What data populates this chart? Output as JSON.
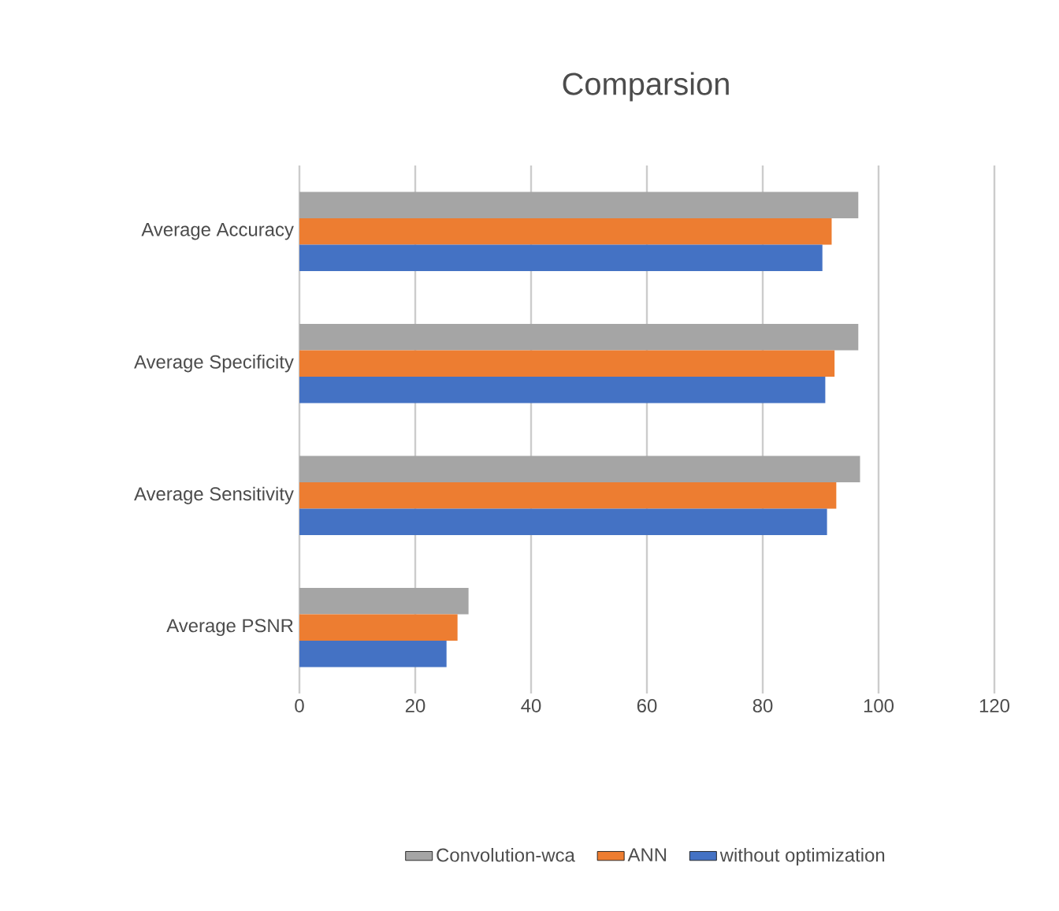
{
  "chart_data": {
    "type": "bar",
    "orientation": "horizontal",
    "title": "Comparsion",
    "categories": [
      "Average Accuracy",
      "Average Specificity",
      "Average Sensitivity",
      "Average PSNR"
    ],
    "series": [
      {
        "name": "Convolution-wca",
        "color": "#a5a5a5",
        "values": [
          96.5,
          96.5,
          96.8,
          29.2
        ]
      },
      {
        "name": "ANN",
        "color": "#ed7d31",
        "values": [
          91.9,
          92.4,
          92.7,
          27.3
        ]
      },
      {
        "name": "without optimization",
        "color": "#4472c4",
        "values": [
          90.3,
          90.8,
          91.1,
          25.4
        ]
      }
    ],
    "xlim": [
      0,
      120
    ],
    "xticks": [
      0,
      20,
      40,
      60,
      80,
      100,
      120
    ],
    "grid": "x",
    "legend": "bottom"
  }
}
